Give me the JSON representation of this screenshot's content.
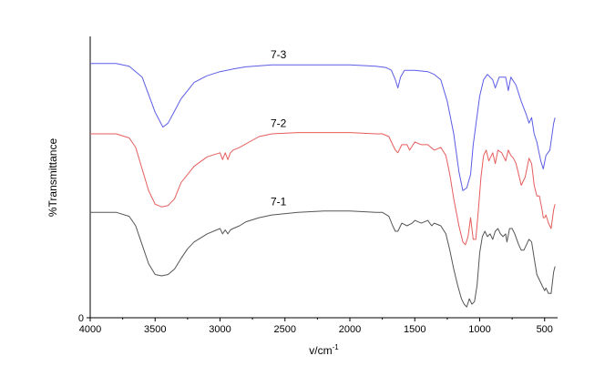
{
  "chart_data": {
    "type": "line",
    "xlabel": "v/cm",
    "xlabel_superscript": "-1",
    "ylabel": "%Transmittance",
    "xlim": [
      4000,
      400
    ],
    "x_reversed": true,
    "ylim": [
      0,
      100
    ],
    "x_ticks": [
      4000,
      3500,
      3000,
      2500,
      2000,
      1500,
      1000,
      500
    ],
    "y_ticks": [
      0
    ],
    "grid": false,
    "legend": "none",
    "series": [
      {
        "name": "7-3",
        "color": "#5c5ce6",
        "points": [
          [
            4000,
            94
          ],
          [
            3800,
            94
          ],
          [
            3700,
            93
          ],
          [
            3600,
            89
          ],
          [
            3500,
            76
          ],
          [
            3440,
            70.5
          ],
          [
            3400,
            72
          ],
          [
            3300,
            81
          ],
          [
            3200,
            87
          ],
          [
            3100,
            89.5
          ],
          [
            3000,
            91
          ],
          [
            2900,
            92
          ],
          [
            2800,
            92.8
          ],
          [
            2600,
            93.5
          ],
          [
            2400,
            93.5
          ],
          [
            2200,
            93.5
          ],
          [
            2000,
            93.5
          ],
          [
            1800,
            93
          ],
          [
            1720,
            92.5
          ],
          [
            1680,
            91.5
          ],
          [
            1650,
            88
          ],
          [
            1630,
            85
          ],
          [
            1610,
            89
          ],
          [
            1580,
            91.5
          ],
          [
            1500,
            91.5
          ],
          [
            1400,
            91
          ],
          [
            1350,
            90
          ],
          [
            1300,
            88
          ],
          [
            1250,
            80
          ],
          [
            1200,
            68
          ],
          [
            1160,
            54
          ],
          [
            1130,
            47
          ],
          [
            1100,
            48
          ],
          [
            1070,
            53
          ],
          [
            1050,
            64
          ],
          [
            1000,
            82
          ],
          [
            970,
            88
          ],
          [
            940,
            90
          ],
          [
            900,
            88
          ],
          [
            880,
            85
          ],
          [
            850,
            89
          ],
          [
            800,
            89
          ],
          [
            780,
            84
          ],
          [
            760,
            89
          ],
          [
            720,
            86
          ],
          [
            680,
            80
          ],
          [
            640,
            75
          ],
          [
            620,
            72
          ],
          [
            600,
            74
          ],
          [
            580,
            68
          ],
          [
            560,
            65
          ],
          [
            530,
            58
          ],
          [
            510,
            55
          ],
          [
            490,
            60
          ],
          [
            460,
            62
          ],
          [
            430,
            72
          ],
          [
            420,
            74
          ]
        ]
      },
      {
        "name": "7-2",
        "color": "#e65c5c",
        "points": [
          [
            4000,
            68
          ],
          [
            3800,
            68
          ],
          [
            3700,
            66.5
          ],
          [
            3650,
            63
          ],
          [
            3600,
            55
          ],
          [
            3550,
            47
          ],
          [
            3500,
            42
          ],
          [
            3450,
            41
          ],
          [
            3400,
            41.5
          ],
          [
            3350,
            44
          ],
          [
            3300,
            50
          ],
          [
            3200,
            56
          ],
          [
            3100,
            59.5
          ],
          [
            3000,
            61
          ],
          [
            2980,
            58.5
          ],
          [
            2960,
            61
          ],
          [
            2940,
            58.5
          ],
          [
            2920,
            61
          ],
          [
            2900,
            62
          ],
          [
            2850,
            63
          ],
          [
            2700,
            67
          ],
          [
            2600,
            68
          ],
          [
            2400,
            68.5
          ],
          [
            2200,
            68.5
          ],
          [
            2000,
            68.5
          ],
          [
            1800,
            68
          ],
          [
            1750,
            68
          ],
          [
            1700,
            67
          ],
          [
            1670,
            64
          ],
          [
            1650,
            62
          ],
          [
            1630,
            61
          ],
          [
            1600,
            64
          ],
          [
            1560,
            64
          ],
          [
            1540,
            62
          ],
          [
            1500,
            65
          ],
          [
            1450,
            64
          ],
          [
            1400,
            64
          ],
          [
            1350,
            62
          ],
          [
            1300,
            63
          ],
          [
            1260,
            60
          ],
          [
            1230,
            53
          ],
          [
            1200,
            44
          ],
          [
            1160,
            34
          ],
          [
            1130,
            28
          ],
          [
            1110,
            27
          ],
          [
            1090,
            30
          ],
          [
            1070,
            37
          ],
          [
            1050,
            29
          ],
          [
            1030,
            29
          ],
          [
            1010,
            40
          ],
          [
            990,
            52
          ],
          [
            970,
            60
          ],
          [
            950,
            62
          ],
          [
            930,
            58
          ],
          [
            900,
            61
          ],
          [
            880,
            57
          ],
          [
            860,
            62
          ],
          [
            830,
            61
          ],
          [
            800,
            58
          ],
          [
            780,
            62
          ],
          [
            760,
            60
          ],
          [
            740,
            59
          ],
          [
            720,
            57
          ],
          [
            700,
            53
          ],
          [
            680,
            49
          ],
          [
            650,
            52
          ],
          [
            620,
            59
          ],
          [
            600,
            57
          ],
          [
            580,
            49
          ],
          [
            560,
            45
          ],
          [
            540,
            45
          ],
          [
            520,
            40
          ],
          [
            510,
            37
          ],
          [
            500,
            37
          ],
          [
            490,
            38
          ],
          [
            470,
            35
          ],
          [
            450,
            33
          ],
          [
            430,
            40
          ],
          [
            420,
            42
          ]
        ]
      },
      {
        "name": "7-1",
        "color": "#555555",
        "points": [
          [
            4000,
            39
          ],
          [
            3800,
            39
          ],
          [
            3700,
            37.5
          ],
          [
            3650,
            34
          ],
          [
            3600,
            27
          ],
          [
            3550,
            20
          ],
          [
            3500,
            16
          ],
          [
            3450,
            15.5
          ],
          [
            3400,
            16
          ],
          [
            3350,
            18
          ],
          [
            3300,
            22
          ],
          [
            3250,
            25.5
          ],
          [
            3200,
            28
          ],
          [
            3100,
            31
          ],
          [
            3000,
            33
          ],
          [
            2980,
            31
          ],
          [
            2960,
            32.5
          ],
          [
            2940,
            31
          ],
          [
            2920,
            32.5
          ],
          [
            2900,
            33
          ],
          [
            2850,
            34
          ],
          [
            2800,
            35.5
          ],
          [
            2700,
            37
          ],
          [
            2600,
            38
          ],
          [
            2400,
            39
          ],
          [
            2200,
            39.5
          ],
          [
            2000,
            39.5
          ],
          [
            1800,
            39
          ],
          [
            1750,
            39
          ],
          [
            1700,
            37.5
          ],
          [
            1670,
            34
          ],
          [
            1650,
            32
          ],
          [
            1630,
            32
          ],
          [
            1600,
            35
          ],
          [
            1560,
            34
          ],
          [
            1520,
            35
          ],
          [
            1500,
            36
          ],
          [
            1450,
            35
          ],
          [
            1400,
            36
          ],
          [
            1370,
            34
          ],
          [
            1350,
            35
          ],
          [
            1300,
            34
          ],
          [
            1260,
            31
          ],
          [
            1230,
            25
          ],
          [
            1200,
            18
          ],
          [
            1170,
            12
          ],
          [
            1140,
            7
          ],
          [
            1120,
            5
          ],
          [
            1100,
            4
          ],
          [
            1080,
            7
          ],
          [
            1060,
            5
          ],
          [
            1040,
            6
          ],
          [
            1020,
            12
          ],
          [
            1000,
            24
          ],
          [
            980,
            30
          ],
          [
            960,
            32
          ],
          [
            940,
            30
          ],
          [
            920,
            31
          ],
          [
            900,
            29
          ],
          [
            880,
            32
          ],
          [
            860,
            33
          ],
          [
            840,
            31
          ],
          [
            820,
            30
          ],
          [
            800,
            31
          ],
          [
            790,
            28
          ],
          [
            770,
            33
          ],
          [
            750,
            33
          ],
          [
            730,
            31
          ],
          [
            700,
            27
          ],
          [
            680,
            25
          ],
          [
            660,
            25
          ],
          [
            640,
            27
          ],
          [
            620,
            29
          ],
          [
            600,
            28
          ],
          [
            580,
            22
          ],
          [
            560,
            16
          ],
          [
            540,
            14
          ],
          [
            520,
            12
          ],
          [
            500,
            10
          ],
          [
            490,
            11
          ],
          [
            470,
            9
          ],
          [
            450,
            9
          ],
          [
            430,
            17
          ],
          [
            420,
            19
          ]
        ]
      }
    ],
    "series_label_anchors": [
      {
        "name": "7-3",
        "x": 2550,
        "y": 96
      },
      {
        "name": "7-2",
        "x": 2550,
        "y": 70.5
      },
      {
        "name": "7-1",
        "x": 2550,
        "y": 41.5
      }
    ]
  }
}
